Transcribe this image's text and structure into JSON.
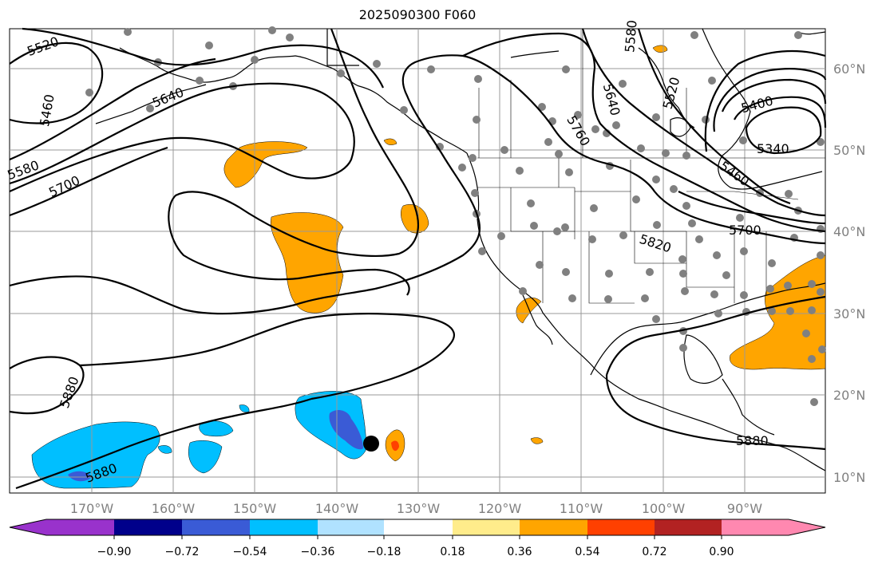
{
  "title": "2025090300 F060",
  "map": {
    "lat_labels": [
      "60°N",
      "50°N",
      "40°N",
      "30°N",
      "20°N",
      "10°N"
    ],
    "lon_labels": [
      "170°W",
      "160°W",
      "150°W",
      "140°W",
      "130°W",
      "120°W",
      "110°W",
      "100°W",
      "90°W"
    ],
    "contour_labels": [
      "5520",
      "5460",
      "5640",
      "5580",
      "5700",
      "5880",
      "5880",
      "5580",
      "5640",
      "5520",
      "5760",
      "5400",
      "5340",
      "5460",
      "5700",
      "5820",
      "5880"
    ],
    "colors": {
      "contour": "#000000",
      "grid": "#999999",
      "coast": "#000000",
      "station": "#808080",
      "marker": "#000000"
    }
  },
  "colorbar": {
    "ticks": [
      "−0.90",
      "−0.72",
      "−0.54",
      "−0.36",
      "−0.18",
      "0.18",
      "0.36",
      "0.54",
      "0.72",
      "0.90"
    ],
    "colors": [
      "#9932cc",
      "#00008b",
      "#3a5bd6",
      "#00bfff",
      "#b0e2ff",
      "#ffffff",
      "#ffec8b",
      "#ffa500",
      "#ff4000",
      "#b22222",
      "#ff88b0"
    ]
  }
}
